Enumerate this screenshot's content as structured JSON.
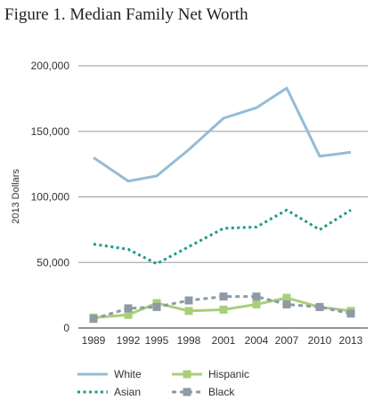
{
  "page": {
    "title": "Figure 1. Median Family Net Worth"
  },
  "chart_data": {
    "type": "line",
    "title": "Figure 1. Median Family Net Worth",
    "xlabel": "",
    "ylabel": "2013 Dollars",
    "x": [
      "1989",
      "1992",
      "1995",
      "1998",
      "2001",
      "2004",
      "2007",
      "2010",
      "2013"
    ],
    "ylim": [
      0,
      200000
    ],
    "yticks": [
      0,
      50000,
      100000,
      150000,
      200000
    ],
    "ytick_labels": [
      "0",
      "50,000",
      "100,000",
      "150,000",
      "200,000"
    ],
    "grid": "horizontal",
    "legend_position": "bottom",
    "series": [
      {
        "name": "White",
        "values": [
          130000,
          112000,
          116000,
          136000,
          160000,
          168000,
          183000,
          131000,
          134000
        ],
        "color": "#94bcd6",
        "style": "solid",
        "marker": "none"
      },
      {
        "name": "Asian",
        "values": [
          64000,
          60000,
          49000,
          62000,
          76000,
          77000,
          90000,
          75000,
          90000
        ],
        "color": "#1a9b8b",
        "style": "dotted",
        "marker": "none"
      },
      {
        "name": "Hispanic",
        "values": [
          8000,
          10000,
          19000,
          13000,
          14000,
          18000,
          23000,
          16000,
          13000
        ],
        "color": "#a9cf7a",
        "style": "solid",
        "marker": "square"
      },
      {
        "name": "Black",
        "values": [
          7000,
          15000,
          16000,
          21000,
          24000,
          24000,
          18000,
          16000,
          11000
        ],
        "color": "#8e9aa6",
        "style": "dashed",
        "marker": "square"
      }
    ]
  }
}
